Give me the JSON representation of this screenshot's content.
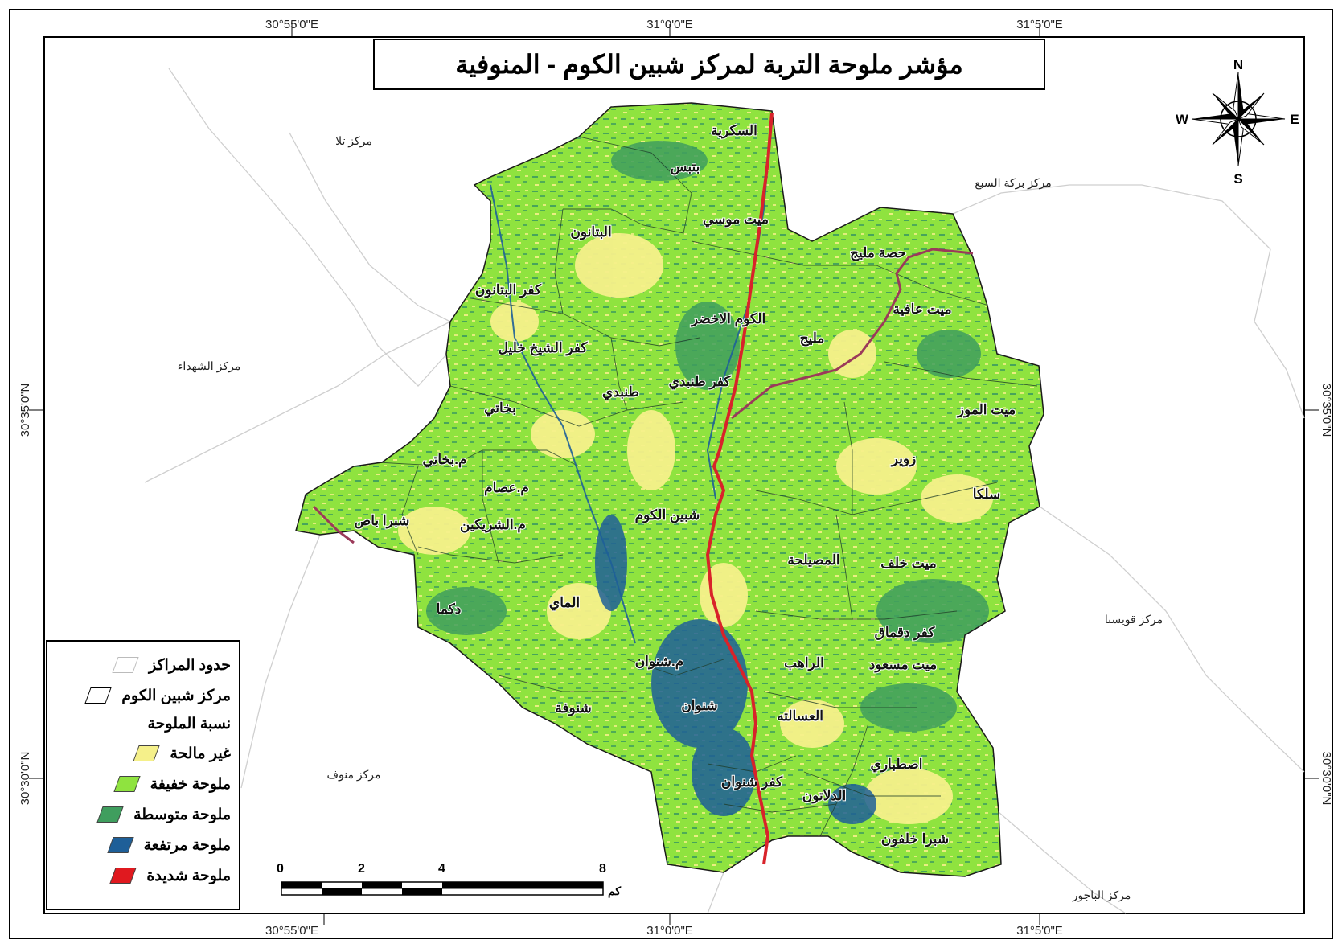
{
  "title": "مؤشر ملوحة التربة لمركز شبين الكوم - المنوفية",
  "coordinates": {
    "top": [
      "30°55'0\"E",
      "31°0'0\"E",
      "31°5'0\"E"
    ],
    "bottom": [
      "30°55'0\"E",
      "31°0'0\"E",
      "31°5'0\"E"
    ],
    "left": [
      "30°35'0\"N",
      "30°30'0\"N"
    ],
    "right": [
      "30°35'0\"N",
      "30°30'0\"N"
    ]
  },
  "compass": {
    "n": "N",
    "s": "S",
    "e": "E",
    "w": "W"
  },
  "neighbours": {
    "tala": "مركز تلا",
    "berket": "مركز بركة السبع",
    "shohadaa": "مركز الشهداء",
    "quesna": "مركز قويسنا",
    "menouf": "مركز منوف",
    "bagour": "مركز الباجور"
  },
  "villages": {
    "sakareya": "السكرية",
    "batbs": "بتبس",
    "mit_mousa": "ميت موسي",
    "batanoun": "البتانون",
    "kafr_batanoun": "كفر البتانون",
    "hesa": "حصة مليج",
    "mit_afeya": "ميت عافية",
    "koum_akhdar": "الكوم الاخضر",
    "melig": "مليج",
    "kafr_sheikh": "كفر الشيخ خليل",
    "tanbdy": "طنبدي",
    "kafr_tanbdy": "كفر طنبدي",
    "bokhaty": "بخاتي",
    "mit_mooz": "ميت الموز",
    "m_bokhaty": "م.بخاتي",
    "zawer": "زوير",
    "m_esam": "م.عصام",
    "salka": "سلكا",
    "shebin": "شبين الكوم",
    "shubra_bas": "شبرا باص",
    "m_sharikein": "م.الشريكين",
    "mosaylha": "المصيلحة",
    "mit_khalaf": "ميت خلف",
    "maay": "الماي",
    "dakma": "دكما",
    "kafr_dekmaq": "كفر دقماق",
    "m_shenwan": "م.شنوان",
    "raheb": "الراهب",
    "mit_masoud": "ميت مسعود",
    "shenofa": "شنوفة",
    "shenwan": "شنوان",
    "asalta": "العسالته",
    "estabary": "اصطباري",
    "kafr_shenwan": "كفر شنوان",
    "dalatoun": "الدلاتون",
    "shubra_khalfoun": "شبرا خلفون"
  },
  "legend": {
    "boundaries": "حدود المراكز",
    "markaz": "مركز شبين الكوم",
    "heading": "نسبة الملوحة",
    "classes": [
      {
        "label": "غير مالحة",
        "color": "#f5f08a"
      },
      {
        "label": "ملوحة خفيفة",
        "color": "#8fe33f"
      },
      {
        "label": "ملوحة متوسطة",
        "color": "#3f9e5e"
      },
      {
        "label": "ملوحة مرتفعة",
        "color": "#1e5f98"
      },
      {
        "label": "ملوحة شديدة",
        "color": "#e0191f"
      }
    ]
  },
  "scale": {
    "ticks": [
      "0",
      "2",
      "4",
      "8"
    ],
    "unit": "كم"
  },
  "colors": {
    "non_saline": "#f5f08a",
    "light": "#8fe33f",
    "medium": "#3f9e5e",
    "high": "#1e5f98",
    "severe": "#e0191f",
    "river": "#b02a3a"
  }
}
